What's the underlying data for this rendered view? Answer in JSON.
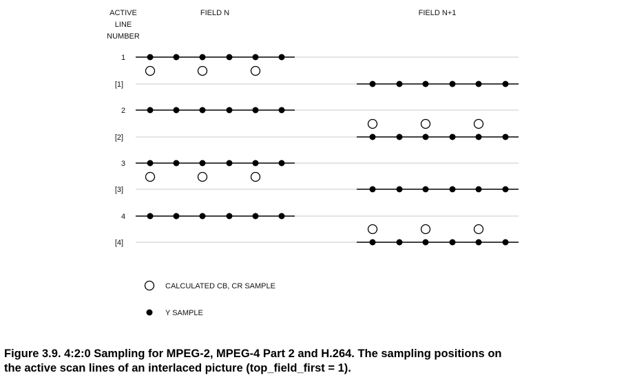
{
  "headers": {
    "active_line_number": [
      "ACTIVE",
      "LINE",
      "NUMBER"
    ],
    "field_n": "FIELD N",
    "field_n1": "FIELD N+1"
  },
  "rows": [
    {
      "label": "1",
      "field": "N"
    },
    {
      "label": "[1]",
      "field": "N+1"
    },
    {
      "label": "2",
      "field": "N"
    },
    {
      "label": "[2]",
      "field": "N+1"
    },
    {
      "label": "3",
      "field": "N"
    },
    {
      "label": "[3]",
      "field": "N+1"
    },
    {
      "label": "4",
      "field": "N"
    },
    {
      "label": "[4]",
      "field": "N+1"
    }
  ],
  "legend": {
    "chroma_label": "CALCULATED CB, CR SAMPLE",
    "luma_label": "Y SAMPLE"
  },
  "caption": {
    "line1": "Figure 3.9. 4:2:0 Sampling for MPEG-2, MPEG-4 Part 2 and H.264. The sampling positions on",
    "line2": "the active scan lines of an interlaced picture (top_field_first = 1)."
  },
  "colors": {
    "scan_line": "#c8c8c8",
    "sample_line": "#000000",
    "dot": "#000000",
    "ring": "#000000"
  }
}
